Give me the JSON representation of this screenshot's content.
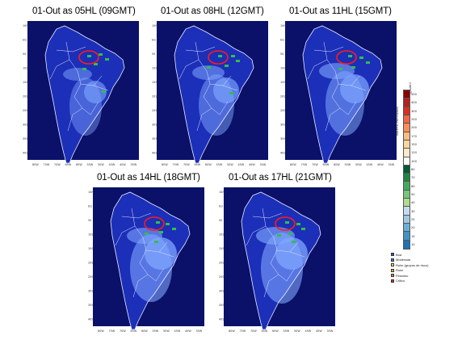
{
  "panels": [
    {
      "title": "01-Out as 05HL  (09GMT)"
    },
    {
      "title": "01-Out as 08HL (12GMT)"
    },
    {
      "title": "01-Out as 11HL (15GMT)"
    },
    {
      "title": "01-Out as 14HL (18GMT)"
    },
    {
      "title": "01-Out as 17HL (21GMT)"
    }
  ],
  "lat_ticks": [
    "10N",
    "EQ",
    "5S",
    "10S",
    "15S",
    "20S",
    "25S",
    "30S",
    "35S",
    "40S"
  ],
  "lon_ticks": [
    "80W",
    "75W",
    "70W",
    "65W",
    "60W",
    "55W",
    "50W",
    "45W",
    "40W",
    "35W"
  ],
  "colorbar": {
    "unit": "(ug/m3)",
    "quantity": "Material Particulado",
    "levels": [
      "500",
      "400",
      "300",
      "250",
      "200",
      "170",
      "150",
      "120",
      "100",
      "80",
      "70",
      "60",
      "50",
      "40",
      "30",
      "25",
      "20",
      "15",
      "10"
    ],
    "colors": [
      "#8b0000",
      "#b22222",
      "#d7301f",
      "#ef6548",
      "#fc8d59",
      "#fdbb84",
      "#fdd49e",
      "#fee8c8",
      "#ffffff",
      "#005a32",
      "#238443",
      "#41ab5d",
      "#78c679",
      "#addd8e",
      "#c6dbef",
      "#9ecae1",
      "#6baed6",
      "#4292c6",
      "#2171b5"
    ]
  },
  "categories": [
    {
      "label": "Boa",
      "color": "#1f4fcf"
    },
    {
      "label": "Moderada",
      "color": "#3a7bd5"
    },
    {
      "label": "Ruim (grupos de risco)",
      "color": "#f2e24a"
    },
    {
      "label": "Ruim",
      "color": "#f6a623"
    },
    {
      "label": "Pessimo",
      "color": "#f46d43"
    },
    {
      "label": "Critico",
      "color": "#d73027"
    }
  ]
}
